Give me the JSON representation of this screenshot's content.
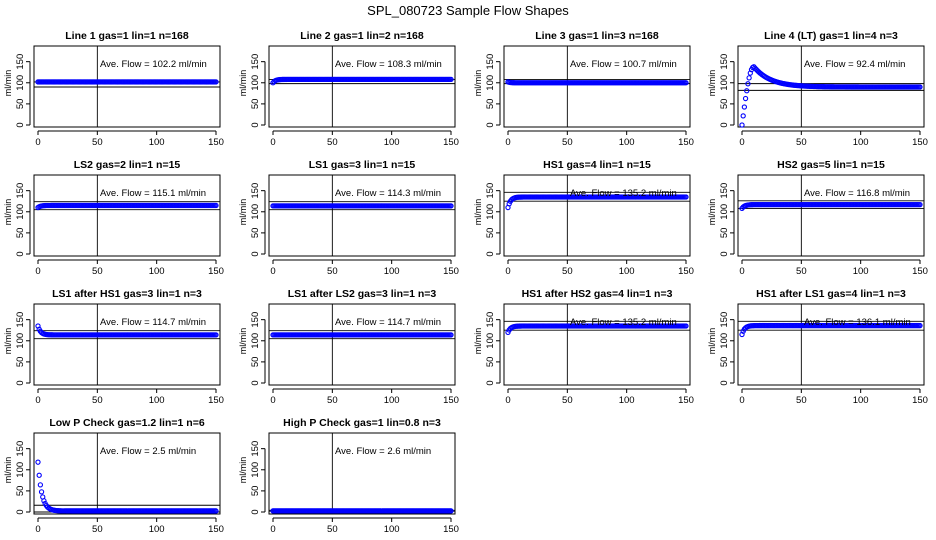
{
  "title": "SPL_080723  Sample Flow Shapes",
  "chart_data": {
    "type": "scatter",
    "title": "SPL_080723  Sample Flow Shapes",
    "ylabel": "ml/min",
    "xticks": [
      0,
      50,
      100,
      150
    ],
    "yticks": [
      0,
      50,
      100,
      150
    ],
    "xlim": [
      0,
      150
    ],
    "ylim": [
      0,
      180
    ],
    "vertical_line_x": 50,
    "marker_color": "#0000ff",
    "panels": [
      {
        "title": "Line 1 gas=1 lin=1 n=168",
        "annotation": "Ave. Flow =  102.2  ml/min",
        "hlines": [
          102,
          90
        ],
        "series": {
          "name": "",
          "shape": "flat",
          "plateau": 102,
          "start": 102
        }
      },
      {
        "title": "Line 2 gas=1 lin=2 n=168",
        "annotation": "Ave. Flow =  108.3  ml/min",
        "hlines": [
          108,
          98
        ],
        "series": {
          "name": "",
          "shape": "flat",
          "plateau": 108,
          "start": 100
        }
      },
      {
        "title": "Line 3 gas=1 lin=3 n=168",
        "annotation": "Ave. Flow =  100.7  ml/min",
        "hlines": [
          108,
          98
        ],
        "series": {
          "name": "",
          "shape": "flat",
          "plateau": 100,
          "start": 102
        }
      },
      {
        "title": "Line 4 (LT) gas=1 lin=4 n=3",
        "annotation": "Ave. Flow =  92.4  ml/min",
        "hlines": [
          98,
          82
        ],
        "series": {
          "name": "",
          "shape": "overshoot",
          "plateau": 90,
          "start": 0,
          "peak": 138,
          "peak_x": 10
        }
      },
      {
        "title": "LS2 gas=2 lin=1 n=15",
        "annotation": "Ave. Flow =  115.1  ml/min",
        "hlines": [
          124,
          105
        ],
        "series": {
          "name": "",
          "shape": "rise",
          "plateau": 115,
          "start": 110
        }
      },
      {
        "title": "LS1 gas=3 lin=1 n=15",
        "annotation": "Ave. Flow =  114.3  ml/min",
        "hlines": [
          124,
          105
        ],
        "series": {
          "name": "",
          "shape": "flat",
          "plateau": 114,
          "start": 114
        }
      },
      {
        "title": "HS1 gas=4 lin=1 n=15",
        "annotation": "Ave. Flow =  135.2  ml/min",
        "hlines": [
          146,
          125
        ],
        "series": {
          "name": "",
          "shape": "rise",
          "plateau": 135,
          "start": 110
        }
      },
      {
        "title": "HS2 gas=5 lin=1 n=15",
        "annotation": "Ave. Flow =  116.8  ml/min",
        "hlines": [
          126,
          108
        ],
        "series": {
          "name": "",
          "shape": "rise",
          "plateau": 117,
          "start": 108
        }
      },
      {
        "title": "LS1 after HS1 gas=3 lin=1 n=3",
        "annotation": "Ave. Flow =  114.7  ml/min",
        "hlines": [
          124,
          105
        ],
        "series": {
          "name": "",
          "shape": "fall",
          "plateau": 114,
          "start": 135
        }
      },
      {
        "title": "LS1 after LS2 gas=3 lin=1 n=3",
        "annotation": "Ave. Flow =  114.7  ml/min",
        "hlines": [
          124,
          105
        ],
        "series": {
          "name": "",
          "shape": "flat",
          "plateau": 114,
          "start": 114
        }
      },
      {
        "title": "HS1 after HS2 gas=4 lin=1 n=3",
        "annotation": "Ave. Flow =  135.2  ml/min",
        "hlines": [
          146,
          125
        ],
        "series": {
          "name": "",
          "shape": "rise",
          "plateau": 135,
          "start": 120
        }
      },
      {
        "title": "HS1 after LS1 gas=4 lin=1 n=3",
        "annotation": "Ave. Flow =  136.1  ml/min",
        "hlines": [
          146,
          125
        ],
        "series": {
          "name": "",
          "shape": "rise",
          "plateau": 136,
          "start": 115
        }
      },
      {
        "title": "Low P Check gas=1.2 lin=1 n=6",
        "annotation": "Ave. Flow =  2.5  ml/min",
        "hlines": [
          16,
          0
        ],
        "series": {
          "name": "",
          "shape": "decay",
          "plateau": 2.5,
          "start": 118
        }
      },
      {
        "title": "High P Check gas=1 lin=0.8 n=3",
        "annotation": "Ave. Flow =  2.6  ml/min",
        "hlines": [
          4,
          2
        ],
        "series": {
          "name": "",
          "shape": "flat",
          "plateau": 2.6,
          "start": 2.6
        }
      }
    ]
  }
}
